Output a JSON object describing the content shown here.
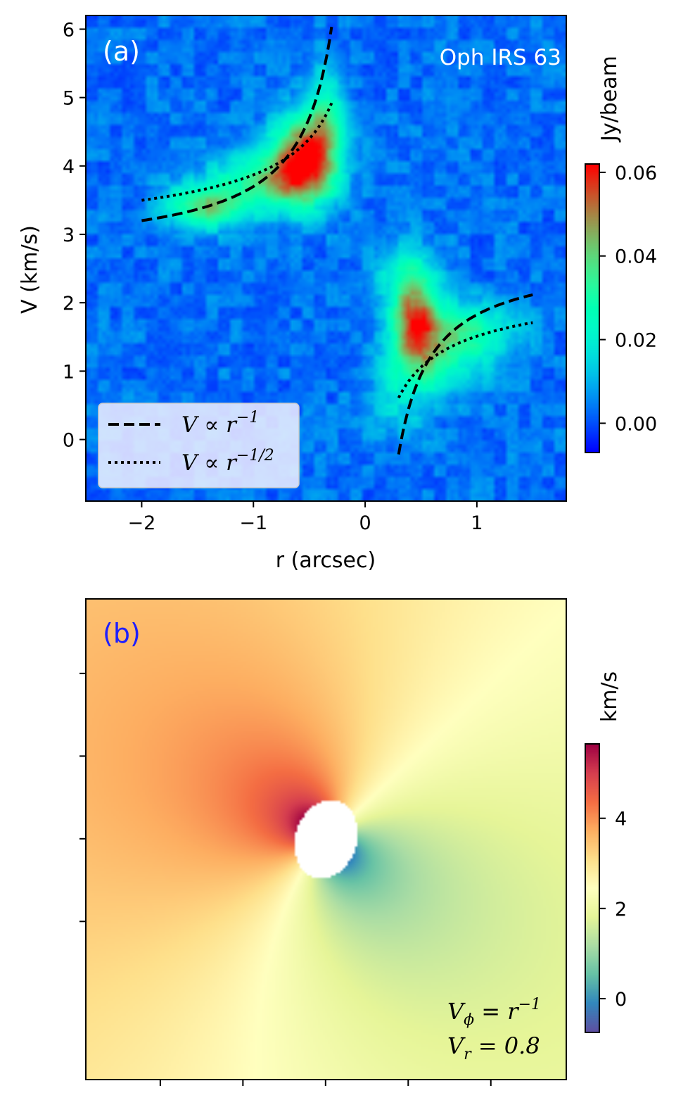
{
  "chart_data": [
    {
      "panel_label": "(a)",
      "panel_label_color": "#ffffff",
      "type": "heatmap",
      "title": "Oph IRS 63",
      "xlabel": "r (arcsec)",
      "ylabel": "V (km/s)",
      "xlim": [
        -2.5,
        1.8
      ],
      "ylim": [
        -0.9,
        6.2
      ],
      "x_ticks": [
        -2,
        -1,
        0,
        1
      ],
      "x_tick_labels": [
        "−2",
        "−1",
        "0",
        "1"
      ],
      "y_ticks": [
        0,
        1,
        2,
        3,
        4,
        5,
        6
      ],
      "y_tick_labels": [
        "0",
        "1",
        "2",
        "3",
        "4",
        "5",
        "6"
      ],
      "colorbar": {
        "label": "Jy/beam",
        "colormap": "rainbow",
        "min": -0.007,
        "max": 0.062,
        "ticks": [
          0.0,
          0.02,
          0.04,
          0.06
        ],
        "tick_labels": [
          "0.00",
          "0.02",
          "0.04",
          "0.06"
        ]
      },
      "background_value": 0.003,
      "emission_peaks": [
        {
          "r": -0.55,
          "v": 4.1,
          "amp": 0.052,
          "sr": 0.2,
          "sv": 0.45
        },
        {
          "r": -1.45,
          "v": 3.4,
          "amp": 0.036,
          "sr": 0.25,
          "sv": 0.22
        },
        {
          "r": -0.9,
          "v": 3.8,
          "amp": 0.028,
          "sr": 0.35,
          "sv": 0.3
        },
        {
          "r": -0.35,
          "v": 4.7,
          "amp": 0.024,
          "sr": 0.12,
          "sv": 0.5
        },
        {
          "r": 0.45,
          "v": 1.75,
          "amp": 0.044,
          "sr": 0.14,
          "sv": 0.45
        },
        {
          "r": 0.6,
          "v": 1.2,
          "amp": 0.022,
          "sr": 0.3,
          "sv": 0.4
        },
        {
          "r": 0.95,
          "v": 1.6,
          "amp": 0.024,
          "sr": 0.3,
          "sv": 0.3
        },
        {
          "r": 0.35,
          "v": 2.4,
          "amp": 0.016,
          "sr": 0.2,
          "sv": 0.35
        },
        {
          "r": 0.3,
          "v": 0.5,
          "amp": 0.01,
          "sr": 0.2,
          "sv": 0.4
        }
      ],
      "series": [
        {
          "name": "V ∝ r^-1",
          "style": "dashed",
          "branch": "r<0",
          "r_range": [
            -2.0,
            -0.3
          ],
          "v_sys": 2.7,
          "k": 1.0,
          "power": -1
        },
        {
          "name": "V ∝ r^-1",
          "style": "dashed",
          "branch": "r>0",
          "r_range": [
            0.3,
            1.5
          ],
          "v_sys": 2.7,
          "k": 0.875,
          "power": -1
        },
        {
          "name": "V ∝ r^-1/2",
          "style": "dotted",
          "branch": "r<0",
          "r_range": [
            -2.0,
            -0.3
          ],
          "v_sys": 2.6,
          "k": 1.27,
          "power": -0.5
        },
        {
          "name": "V ∝ r^-1/2",
          "style": "dotted",
          "branch": "r>0",
          "r_range": [
            0.3,
            1.5
          ],
          "v_sys": 2.6,
          "k": 1.09,
          "power": -0.5
        }
      ],
      "legend": {
        "location": "lower-left",
        "entries": [
          {
            "style": "dashed",
            "label_base": "V ∝ r",
            "label_exp": "−1"
          },
          {
            "style": "dotted",
            "label_base": "V ∝ r",
            "label_exp": "−1/2"
          }
        ]
      }
    },
    {
      "panel_label": "(b)",
      "panel_label_color": "#1f1fff",
      "type": "heatmap",
      "title": "",
      "xlabel": "",
      "ylabel": "",
      "colorbar": {
        "label": "km/s",
        "colormap": "Spectral_r",
        "min": -0.75,
        "max": 5.65,
        "ticks": [
          0,
          2,
          4
        ],
        "tick_labels": [
          "0",
          "2",
          "4"
        ]
      },
      "model": {
        "v_sys": 2.7,
        "v_phi_amp": 2.6,
        "v_r_amp": 0.8
      },
      "annotation_lines": [
        {
          "base": "V",
          "sub": "ϕ",
          "rest": " = r",
          "sup": "−1"
        },
        {
          "base": "V",
          "sub": "r",
          "rest": " = 0.8",
          "sup": ""
        }
      ],
      "x_tick_count": 5,
      "y_tick_count": 4
    }
  ]
}
